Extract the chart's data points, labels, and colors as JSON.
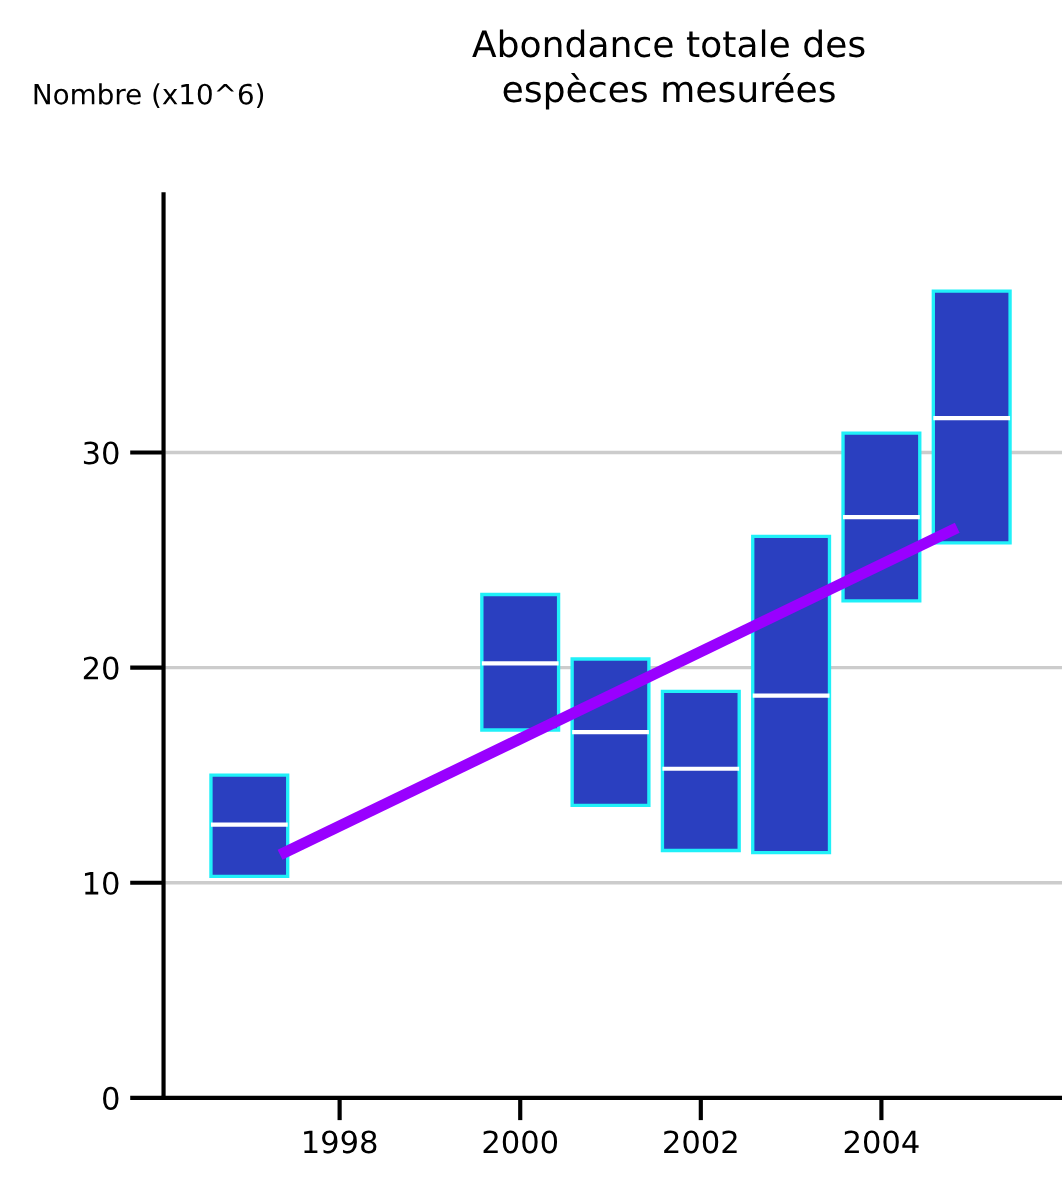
{
  "chart_data": {
    "type": "box",
    "title": "Abondance totale des\nespèces mesurées",
    "ylabel": "Nombre (x10^6)",
    "xlim": [
      1996.05,
      2006
    ],
    "xticks": [
      1998,
      2000,
      2002,
      2004
    ],
    "ylim": [
      0,
      42
    ],
    "yticks": [
      0,
      10,
      20,
      30
    ],
    "grid": "y",
    "series": [
      {
        "color": "#2a3fc0",
        "x": [
          1997,
          2000,
          2001,
          2002,
          2003,
          2004,
          2005
        ],
        "boxes": [
          {
            "q1": 10.3,
            "median": 12.7,
            "q3": 15.0
          },
          {
            "q1": 17.1,
            "median": 20.2,
            "q3": 23.4
          },
          {
            "q1": 13.6,
            "median": 17.0,
            "q3": 20.4
          },
          {
            "q1": 11.5,
            "median": 15.3,
            "q3": 18.9
          },
          {
            "q1": 11.4,
            "median": 18.7,
            "q3": 26.1
          },
          {
            "q1": 23.1,
            "median": 27.0,
            "q3": 30.9
          },
          {
            "q1": 25.8,
            "median": 31.6,
            "q3": 37.5
          }
        ]
      },
      {
        "type": "line",
        "color": "#9900ff",
        "x": [
          1997.34,
          2004.84
        ],
        "values": [
          11.3,
          26.5
        ]
      }
    ]
  }
}
